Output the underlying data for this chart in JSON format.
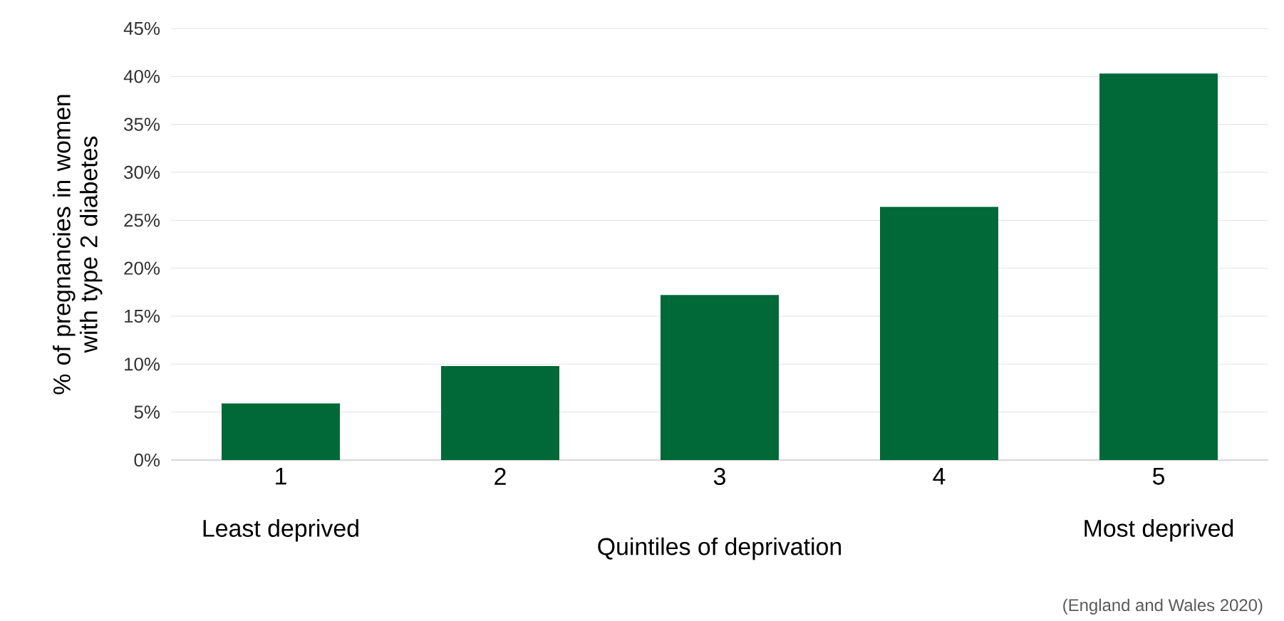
{
  "chart_data": {
    "type": "bar",
    "xlabel": "Quintiles of deprivation",
    "ylabel": "% of pregnancies in women with type 2 diabetes",
    "categories": [
      "1",
      "2",
      "3",
      "4",
      "5"
    ],
    "values": [
      5.9,
      9.8,
      17.2,
      26.4,
      40.3
    ],
    "color": "#006937",
    "ylim": [
      0,
      45
    ],
    "yticks": [
      {
        "value": 0,
        "label": "0%"
      },
      {
        "value": 5,
        "label": "5%"
      },
      {
        "value": 10,
        "label": "10%"
      },
      {
        "value": 15,
        "label": "15%"
      },
      {
        "value": 20,
        "label": "20%"
      },
      {
        "value": 25,
        "label": "25%"
      },
      {
        "value": 30,
        "label": "30%"
      },
      {
        "value": 35,
        "label": "35%"
      },
      {
        "value": 40,
        "label": "40%"
      },
      {
        "value": 45,
        "label": "45%"
      }
    ],
    "grid": "y",
    "annotations": [
      "Least deprived",
      "Most deprived",
      "(England and Wales 2020)"
    ]
  }
}
